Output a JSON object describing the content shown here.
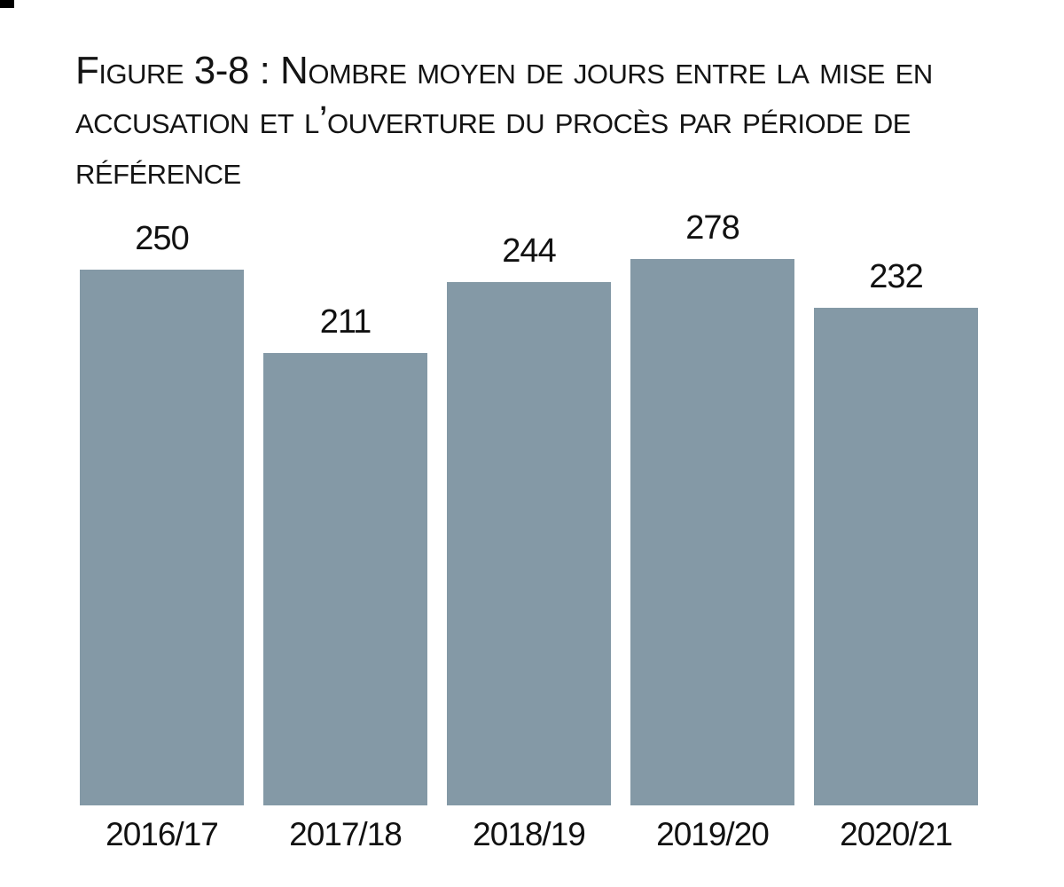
{
  "page": {
    "background_color": "#ffffff",
    "corner_mark_color": "#000000"
  },
  "figure": {
    "title": "Figure 3-8 : Nombre moyen de jours entre la mise en accusation et l’ouverture du procès par période de référence"
  },
  "chart_data": {
    "type": "bar",
    "title": "Figure 3-8 : Nombre moyen de jours entre la mise en accusation et l’ouverture du procès par période de référence",
    "categories": [
      "2016/17",
      "2017/18",
      "2018/19",
      "2019/20",
      "2020/21"
    ],
    "values": [
      250,
      211,
      244,
      278,
      232
    ],
    "value_labels_shown": true,
    "xlabel": "",
    "ylabel": "",
    "ylim": [
      0,
      278
    ],
    "grid": false,
    "legend": false,
    "axis_lines": false,
    "bar_color": "#8499A6",
    "label_color": "#111111"
  }
}
